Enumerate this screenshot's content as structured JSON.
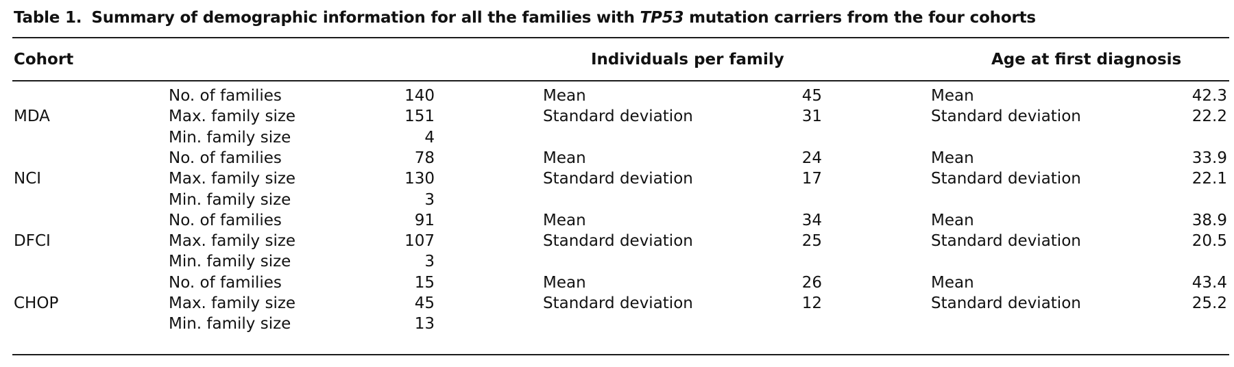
{
  "table": {
    "label": "Table 1.",
    "caption_before": "Summary of demographic information for all the families with ",
    "caption_gene": "TP53",
    "caption_after": " mutation carriers from the four cohorts",
    "headers": {
      "cohort": "Cohort",
      "individuals": "Individuals per family",
      "age": "Age at first diagnosis"
    },
    "rows": [
      {
        "cohort": "",
        "stat": "No. of families",
        "value": "140",
        "ind_label": "Mean",
        "ind_value": "45",
        "age_label": "Mean",
        "age_value": "42.3"
      },
      {
        "cohort": "MDA",
        "stat": "Max. family size",
        "value": "151",
        "ind_label": "Standard deviation",
        "ind_value": "31",
        "age_label": "Standard deviation",
        "age_value": "22.2"
      },
      {
        "cohort": "",
        "stat": "Min. family size",
        "value": "4",
        "ind_label": "",
        "ind_value": "",
        "age_label": "",
        "age_value": ""
      },
      {
        "cohort": "",
        "stat": "No. of families",
        "value": "78",
        "ind_label": "Mean",
        "ind_value": "24",
        "age_label": "Mean",
        "age_value": "33.9"
      },
      {
        "cohort": "NCI",
        "stat": "Max. family size",
        "value": "130",
        "ind_label": "Standard deviation",
        "ind_value": "17",
        "age_label": "Standard deviation",
        "age_value": "22.1"
      },
      {
        "cohort": "",
        "stat": "Min. family size",
        "value": "3",
        "ind_label": "",
        "ind_value": "",
        "age_label": "",
        "age_value": ""
      },
      {
        "cohort": "",
        "stat": "No. of families",
        "value": "91",
        "ind_label": "Mean",
        "ind_value": "34",
        "age_label": "Mean",
        "age_value": "38.9"
      },
      {
        "cohort": "DFCI",
        "stat": "Max. family size",
        "value": "107",
        "ind_label": "Standard deviation",
        "ind_value": "25",
        "age_label": "Standard deviation",
        "age_value": "20.5"
      },
      {
        "cohort": "",
        "stat": "Min. family size",
        "value": "3",
        "ind_label": "",
        "ind_value": "",
        "age_label": "",
        "age_value": ""
      },
      {
        "cohort": "",
        "stat": "No. of families",
        "value": "15",
        "ind_label": "Mean",
        "ind_value": "26",
        "age_label": "Mean",
        "age_value": "43.4"
      },
      {
        "cohort": "CHOP",
        "stat": "Max. family size",
        "value": "45",
        "ind_label": "Standard deviation",
        "ind_value": "12",
        "age_label": "Standard deviation",
        "age_value": "25.2"
      },
      {
        "cohort": "",
        "stat": "Min. family size",
        "value": "13",
        "ind_label": "",
        "ind_value": "",
        "age_label": "",
        "age_value": ""
      }
    ]
  }
}
